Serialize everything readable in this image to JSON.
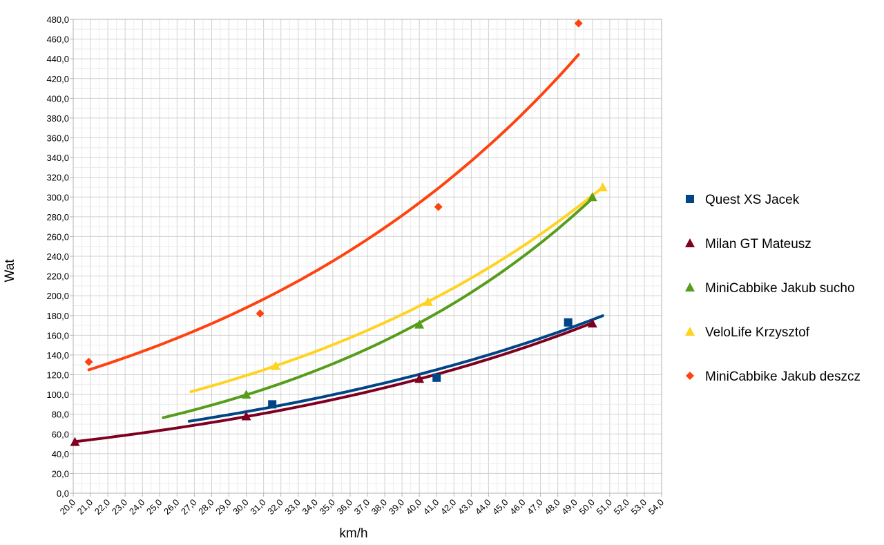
{
  "chart_data": {
    "type": "scatter",
    "xlabel": "km/h",
    "ylabel": "Wat",
    "xlim": [
      20,
      54
    ],
    "ylim": [
      0,
      480
    ],
    "x_major_step": 1,
    "x_minor_step": 0.5,
    "y_major_step": 20,
    "y_minor_step": 10,
    "tick_format": "1 decimal, comma separator",
    "grid": true,
    "legend_position": "right",
    "series": [
      {
        "name": "Quest XS Jacek",
        "marker": "square",
        "color": "#004586",
        "x": [
          31.5,
          41.0,
          48.6
        ],
        "y": [
          90,
          117,
          173
        ],
        "trend": {
          "type": "exponential",
          "x_range": [
            26.7,
            50.6
          ]
        }
      },
      {
        "name": "Milan GT Mateusz",
        "marker": "triangle",
        "color": "#7e0021",
        "x": [
          20.1,
          30.0,
          40.0,
          50.0
        ],
        "y": [
          52,
          78,
          116,
          172
        ],
        "trend": {
          "type": "exponential",
          "x_range": [
            20.1,
            50.0
          ]
        }
      },
      {
        "name": "MiniCabbike Jakub sucho",
        "marker": "triangle",
        "color": "#579d1c",
        "x": [
          30.0,
          40.0,
          50.0
        ],
        "y": [
          100,
          171,
          300
        ],
        "trend": {
          "type": "exponential",
          "x_range": [
            25.2,
            50.0
          ]
        }
      },
      {
        "name": "VeloLife Krzysztof",
        "marker": "triangle",
        "color": "#ffd320",
        "x": [
          31.7,
          40.5,
          50.6
        ],
        "y": [
          129,
          194,
          310
        ],
        "trend": {
          "type": "exponential",
          "x_range": [
            26.8,
            50.6
          ]
        }
      },
      {
        "name": "MiniCabbike Jakub deszcz",
        "marker": "diamond",
        "color": "#ff420e",
        "x": [
          20.9,
          30.8,
          41.1,
          49.2
        ],
        "y": [
          133,
          182,
          290,
          476
        ],
        "trend": {
          "type": "exponential",
          "x_range": [
            20.9,
            49.2
          ]
        }
      }
    ]
  }
}
